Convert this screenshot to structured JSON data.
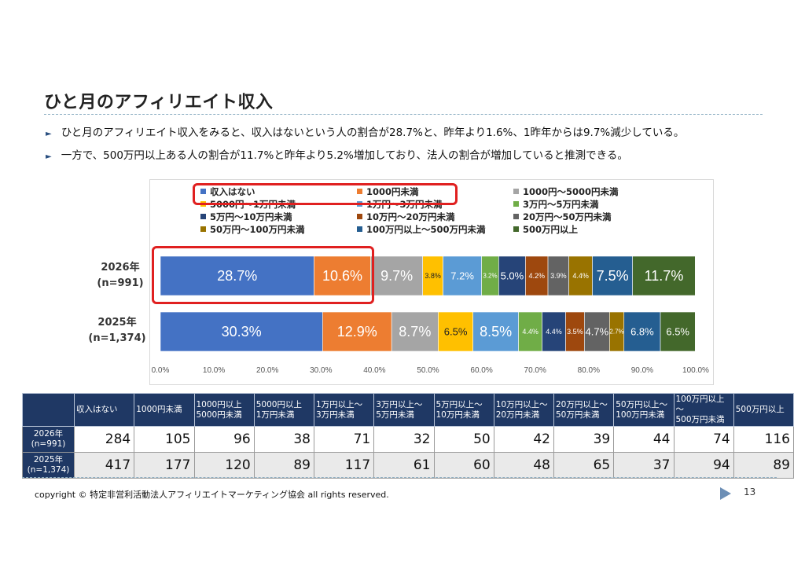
{
  "slide": {
    "title": "ひと月のアフィリエイト収入",
    "bullets": [
      "ひと月のアフィリエイト収入をみると、収入はないという人の割合が28.7%と、昨年より1.6%、1昨年からは9.7%減少している。",
      "一方で、500万円以上ある人の割合が11.7%と昨年より5.2%増加しており、法人の割合が増加していると推測できる。"
    ],
    "copyright": "copyright © 特定非営利活動法人アフィリエイトマーケティング協会 all rights reserved.",
    "page_number": "13"
  },
  "chart_data": {
    "type": "bar",
    "orientation": "horizontal",
    "stacked": true,
    "percent": true,
    "categories": [
      "2026年\n(n=991)",
      "2025年\n(n=1,374)"
    ],
    "category_labels": [
      [
        "2026年",
        "(n=991)"
      ],
      [
        "2025年",
        "(n=1,374)"
      ]
    ],
    "x_ticks": [
      "0.0%",
      "10.0%",
      "20.0%",
      "30.0%",
      "40.0%",
      "50.0%",
      "60.0%",
      "70.0%",
      "80.0%",
      "90.0%",
      "100.0%"
    ],
    "xlim": [
      0,
      100
    ],
    "legend_position": "top",
    "series": [
      {
        "name": "収入はない",
        "color": "#4472c4",
        "values": [
          28.7,
          30.3
        ]
      },
      {
        "name": "1000円未満",
        "color": "#ed7d31",
        "values": [
          10.6,
          12.9
        ]
      },
      {
        "name": "1000円～5000円未満",
        "color": "#a5a5a5",
        "values": [
          9.7,
          8.7
        ]
      },
      {
        "name": "5000円～1万円未満",
        "color": "#ffc000",
        "values": [
          3.8,
          6.5
        ]
      },
      {
        "name": "1万円～3万円未満",
        "color": "#5b9bd5",
        "values": [
          7.2,
          8.5
        ]
      },
      {
        "name": "3万円～5万円未満",
        "color": "#70ad47",
        "values": [
          3.2,
          4.4
        ]
      },
      {
        "name": "5万円～10万円未満",
        "color": "#264478",
        "values": [
          5.0,
          4.4
        ]
      },
      {
        "name": "10万円～20万円未満",
        "color": "#9e480e",
        "values": [
          4.2,
          3.5
        ]
      },
      {
        "name": "20万円～50万円未満",
        "color": "#636363",
        "values": [
          3.9,
          4.7
        ]
      },
      {
        "name": "50万円～100万円未満",
        "color": "#997300",
        "values": [
          4.4,
          2.7
        ]
      },
      {
        "name": "100万円以上～500万円未満",
        "color": "#255e91",
        "values": [
          7.5,
          6.8
        ]
      },
      {
        "name": "500万円以上",
        "color": "#43682b",
        "values": [
          11.7,
          6.5
        ]
      }
    ]
  },
  "table": {
    "columns": [
      "収入はない",
      "1000円未満",
      "1000円以上\n5000円未満",
      "5000円以上\n1万円未満",
      "1万円以上～\n3万円未満",
      "3万円以上～\n5万円未満",
      "5万円以上～\n10万円未満",
      "10万円以上～\n20万円未満",
      "20万円以上～\n50万円未満",
      "50万円以上～\n100万円未満",
      "100万円以上～\n500万円未満",
      "500万円以上"
    ],
    "rows": [
      {
        "label": "2026年\n(n=991)",
        "values": [
          "284",
          "105",
          "96",
          "38",
          "71",
          "32",
          "50",
          "42",
          "39",
          "44",
          "74",
          "116"
        ]
      },
      {
        "label": "2025年\n(n=1,374)",
        "values": [
          "417",
          "177",
          "120",
          "89",
          "117",
          "61",
          "60",
          "48",
          "65",
          "37",
          "94",
          "89"
        ]
      }
    ]
  }
}
